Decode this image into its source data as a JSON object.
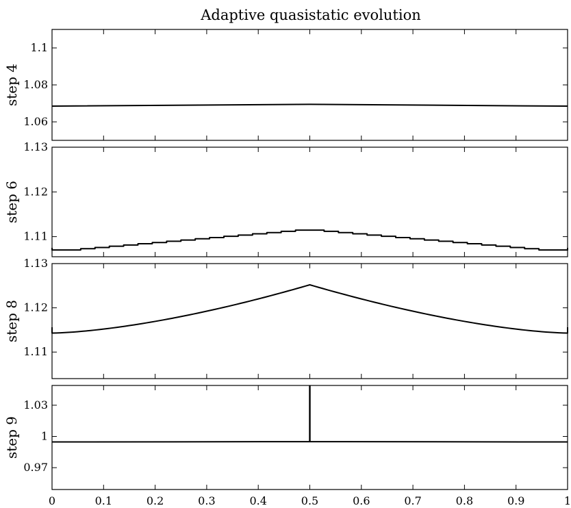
{
  "chart_data": {
    "type": "line",
    "title": "Adaptive quasistatic evolution",
    "xlim": [
      0,
      1
    ],
    "xticks": [
      "0",
      "0.1",
      "0.2",
      "0.3",
      "0.4",
      "0.5",
      "0.6",
      "0.7",
      "0.8",
      "0.9",
      "1"
    ],
    "grid": false,
    "panels": [
      {
        "ylabel": "step 4",
        "ylim": [
          1.05,
          1.11
        ],
        "yticks": [
          1.06,
          1.08,
          1.1
        ],
        "ytick_labels": [
          "1.06",
          "1.08",
          "1.1"
        ],
        "shape": "flat",
        "series": [
          {
            "x": [
              0,
              0.5,
              1
            ],
            "y": [
              1.0685,
              1.0695,
              1.0685
            ]
          }
        ]
      },
      {
        "ylabel": "step 6",
        "ylim": [
          1.1055,
          1.13
        ],
        "yticks": [
          1.11,
          1.12,
          1.13
        ],
        "ytick_labels": [
          "1.11",
          "1.12",
          "1.13"
        ],
        "shape": "stairs",
        "series": [
          {
            "x": [
              0,
              0.02,
              0.5,
              0.98,
              1
            ],
            "y": [
              1.1075,
              1.1068,
              1.1116,
              1.1068,
              1.1075
            ]
          }
        ]
      },
      {
        "ylabel": "step 8",
        "ylim": [
          1.104,
          1.13
        ],
        "yticks": [
          1.11,
          1.12,
          1.13
        ],
        "ytick_labels": [
          "1.11",
          "1.12",
          "1.13"
        ],
        "shape": "cusp",
        "series": [
          {
            "x": [
              0,
              0.5,
              1
            ],
            "y": [
              1.1143,
              1.1252,
              1.1143
            ]
          }
        ]
      },
      {
        "ylabel": "step 9",
        "ylim": [
          0.949,
          1.049
        ],
        "yticks": [
          0.97,
          1,
          1.03
        ],
        "ytick_labels": [
          "0.97",
          "1",
          "1.03"
        ],
        "shape": "spike",
        "series": [
          {
            "x": [
              0,
              0.5,
              1
            ],
            "y": [
              0.9947,
              0.995,
              0.9947
            ],
            "spike_x": 0.5,
            "spike_top": 1.049
          }
        ]
      }
    ]
  }
}
